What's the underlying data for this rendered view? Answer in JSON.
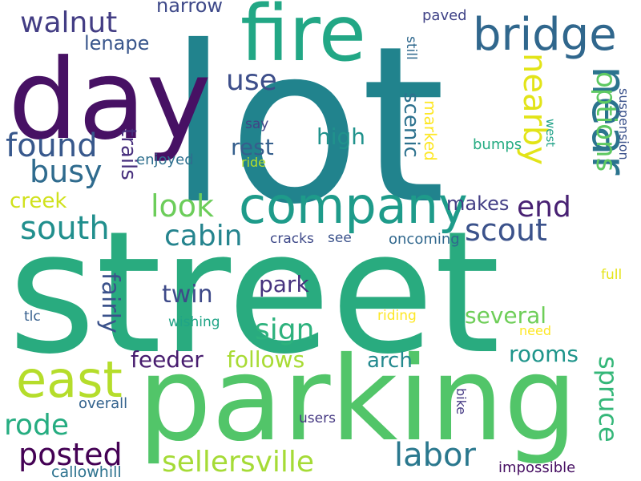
{
  "word_cloud": {
    "palette": "viridis",
    "words": [
      {
        "text": "lot",
        "color": "#21838d"
      },
      {
        "text": "street",
        "color": "#29ab7f"
      },
      {
        "text": "parking",
        "color": "#52c569"
      },
      {
        "text": "day",
        "color": "#471164"
      },
      {
        "text": "fire",
        "color": "#22a785"
      },
      {
        "text": "company",
        "color": "#1e9b8a"
      },
      {
        "text": "bridge",
        "color": "#30678d"
      },
      {
        "text": "near",
        "color": "#2b748e"
      },
      {
        "text": "walnut",
        "color": "#433d84"
      },
      {
        "text": "east",
        "color": "#b5dd2b"
      },
      {
        "text": "south",
        "color": "#218f8d"
      },
      {
        "text": "busy",
        "color": "#2f6b8e"
      },
      {
        "text": "found",
        "color": "#38588c"
      },
      {
        "text": "use",
        "color": "#3d4e8a"
      },
      {
        "text": "options",
        "color": "#5ec962"
      },
      {
        "text": "nearby",
        "color": "#e2e418"
      },
      {
        "text": "end",
        "color": "#482173"
      },
      {
        "text": "scout",
        "color": "#3b528b"
      },
      {
        "text": "look",
        "color": "#6ccd5a"
      },
      {
        "text": "cabin",
        "color": "#25848e"
      },
      {
        "text": "rest",
        "color": "#355f8d"
      },
      {
        "text": "lenape",
        "color": "#39568c"
      },
      {
        "text": "narrow",
        "color": "#3e4989"
      },
      {
        "text": "sign",
        "color": "#2db27d"
      },
      {
        "text": "posted",
        "color": "#440154"
      },
      {
        "text": "rode",
        "color": "#26ad81"
      },
      {
        "text": "labor",
        "color": "#2a788e"
      },
      {
        "text": "sellersville",
        "color": "#a5db36"
      },
      {
        "text": "spruce",
        "color": "#35b779"
      },
      {
        "text": "follows",
        "color": "#a8db34"
      },
      {
        "text": "feeder",
        "color": "#481d6f"
      },
      {
        "text": "arch",
        "color": "#23898e"
      },
      {
        "text": "rooms",
        "color": "#1f958b"
      },
      {
        "text": "several",
        "color": "#6ece58"
      },
      {
        "text": "twin",
        "color": "#3e4a89"
      },
      {
        "text": "park",
        "color": "#46327e"
      },
      {
        "text": "fairly",
        "color": "#3b528b"
      },
      {
        "text": "trails",
        "color": "#472f7d"
      },
      {
        "text": "creek",
        "color": "#d0e11c"
      },
      {
        "text": "scenic",
        "color": "#2c718e"
      },
      {
        "text": "marked",
        "color": "#fde725"
      },
      {
        "text": "high",
        "color": "#20928c"
      },
      {
        "text": "makes",
        "color": "#433e85"
      },
      {
        "text": "bumps",
        "color": "#25ab82"
      },
      {
        "text": "oncoming",
        "color": "#31688e"
      },
      {
        "text": "cracks",
        "color": "#3e4989"
      },
      {
        "text": "see",
        "color": "#3b528b"
      },
      {
        "text": "say",
        "color": "#414487"
      },
      {
        "text": "enjoyed",
        "color": "#2e6f8e"
      },
      {
        "text": "ride",
        "color": "#b8de29"
      },
      {
        "text": "paved",
        "color": "#404387"
      },
      {
        "text": "still",
        "color": "#30698e"
      },
      {
        "text": "west",
        "color": "#1fa187"
      },
      {
        "text": "suspension",
        "color": "#3b528b"
      },
      {
        "text": "full",
        "color": "#e5e419"
      },
      {
        "text": "riding",
        "color": "#fde725"
      },
      {
        "text": "need",
        "color": "#fde725"
      },
      {
        "text": "wishing",
        "color": "#20a486"
      },
      {
        "text": "tlc",
        "color": "#355f8d"
      },
      {
        "text": "overall",
        "color": "#33628d"
      },
      {
        "text": "users",
        "color": "#453882"
      },
      {
        "text": "bike",
        "color": "#443983"
      },
      {
        "text": "impossible",
        "color": "#471063"
      },
      {
        "text": "callowhill",
        "color": "#2c728e"
      }
    ]
  }
}
